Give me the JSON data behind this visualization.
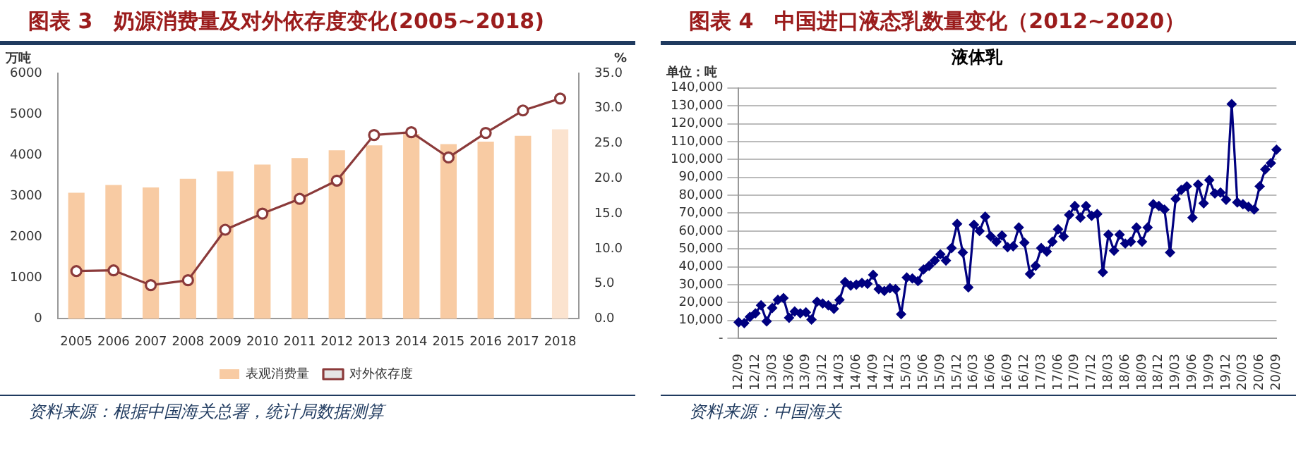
{
  "chart_data": [
    {
      "type": "bar",
      "title": "图表 3　奶源消费量及对外依存度变化(2005~2018)",
      "ylabel": "万吨",
      "y2label": "%",
      "categories": [
        "2005",
        "2006",
        "2007",
        "2008",
        "2009",
        "2010",
        "2011",
        "2012",
        "2013",
        "2014",
        "2015",
        "2016",
        "2017",
        "2018"
      ],
      "series": [
        {
          "name": "表观消费量",
          "type": "bar",
          "colors": [
            "#f8cba3",
            "#f8cba3",
            "#f8cba3",
            "#f8cba3",
            "#f8cba3",
            "#f8cba3",
            "#f8cba3",
            "#f8cba3",
            "#f8cba3",
            "#f8cba3",
            "#f8cba3",
            "#f8cba3",
            "#f8cba3",
            "#fbe3cf"
          ],
          "values": [
            3080,
            3270,
            3210,
            3420,
            3600,
            3770,
            3930,
            4120,
            4240,
            4520,
            4270,
            4330,
            4470,
            4630
          ]
        },
        {
          "name": "对外依存度",
          "type": "line",
          "axis": "y2",
          "color": "#8b3a3a",
          "marker": "circle",
          "values": [
            6.8,
            6.9,
            4.8,
            5.5,
            12.7,
            15.0,
            17.1,
            19.7,
            26.2,
            26.6,
            23.0,
            26.5,
            29.7,
            31.4
          ]
        }
      ],
      "ylim": [
        0,
        6000
      ],
      "yticks": [
        0,
        1000,
        2000,
        3000,
        4000,
        5000,
        6000
      ],
      "y2lim": [
        0,
        35
      ],
      "y2ticks": [
        {
          "value": 0,
          "label": "0.0"
        },
        {
          "value": 5,
          "label": "5.0"
        },
        {
          "value": 10,
          "label": "10.0"
        },
        {
          "value": 15,
          "label": "15.0"
        },
        {
          "value": 20,
          "label": "20.0"
        },
        {
          "value": 25,
          "label": "25.0"
        },
        {
          "value": 30,
          "label": "30.0"
        },
        {
          "value": 35,
          "label": "35.0"
        }
      ],
      "grid": false,
      "legend": "bottom",
      "annotations": [
        "资料来源：根据中国海关总署，统计局数据测算"
      ]
    },
    {
      "type": "line",
      "title": "图表 4　中国进口液态乳数量变化（2012~2020）",
      "subtitle": "液体乳",
      "ylabel": "单位：吨",
      "categories": [
        "12/09",
        null,
        null,
        "12/12",
        null,
        null,
        "13/03",
        null,
        null,
        "13/06",
        null,
        null,
        "13/09",
        null,
        null,
        "13/12",
        null,
        null,
        "14/03",
        null,
        null,
        "14/06",
        null,
        null,
        "14/09",
        null,
        null,
        "14/12",
        null,
        null,
        "15/03",
        null,
        null,
        "15/06",
        null,
        null,
        "15/09",
        null,
        null,
        "15/12",
        null,
        null,
        "16/03",
        null,
        null,
        "16/06",
        null,
        null,
        "16/09",
        null,
        null,
        "16/12",
        null,
        null,
        "17/03",
        null,
        null,
        "17/06",
        null,
        null,
        "17/09",
        null,
        null,
        "17/12",
        null,
        null,
        "18/03",
        null,
        null,
        "18/06",
        null,
        null,
        "18/09",
        null,
        null,
        "18/12",
        null,
        null,
        "19/03",
        null,
        null,
        "19/06",
        null,
        null,
        "19/09",
        null,
        null,
        "19/12",
        null,
        null,
        "20/03",
        null,
        null,
        "20/06",
        null,
        null,
        "20/09"
      ],
      "series": [
        {
          "color": "#000080",
          "marker": "diamond",
          "values": [
            9000,
            8500,
            12000,
            14000,
            18500,
            9500,
            17000,
            21500,
            22500,
            11500,
            15000,
            14000,
            14500,
            10500,
            20500,
            19500,
            18500,
            16500,
            21500,
            31500,
            29500,
            30000,
            31000,
            30500,
            35500,
            27500,
            26500,
            28000,
            27500,
            13500,
            34000,
            33500,
            32000,
            38500,
            40500,
            43500,
            47000,
            43500,
            50500,
            64000,
            48000,
            28500,
            63500,
            60000,
            68000,
            57000,
            54000,
            57500,
            51000,
            51500,
            62000,
            53500,
            36000,
            40500,
            50500,
            48500,
            54000,
            61000,
            57000,
            69000,
            74000,
            67500,
            74000,
            68500,
            69500,
            37000,
            58000,
            49000,
            58000,
            53000,
            54000,
            62000,
            54000,
            62000,
            75000,
            74000,
            72000,
            48000,
            78000,
            83000,
            85000,
            67500,
            86000,
            75500,
            88500,
            81000,
            81500,
            77500,
            131000,
            76000,
            75000,
            73500,
            72000,
            85000,
            94500,
            98000,
            105500
          ]
        }
      ],
      "ylim": [
        0,
        140000
      ],
      "yticks": [
        {
          "value": 0,
          "label": "-"
        },
        {
          "value": 10000,
          "label": "10,000"
        },
        {
          "value": 20000,
          "label": "20,000"
        },
        {
          "value": 30000,
          "label": "30,000"
        },
        {
          "value": 40000,
          "label": "40,000"
        },
        {
          "value": 50000,
          "label": "50,000"
        },
        {
          "value": 60000,
          "label": "60,000"
        },
        {
          "value": 70000,
          "label": "70,000"
        },
        {
          "value": 80000,
          "label": "80,000"
        },
        {
          "value": 90000,
          "label": "90,000"
        },
        {
          "value": 100000,
          "label": "100,000"
        },
        {
          "value": 110000,
          "label": "110,000"
        },
        {
          "value": 120000,
          "label": "120,000"
        },
        {
          "value": 130000,
          "label": "130,000"
        },
        {
          "value": 140000,
          "label": "140,000"
        }
      ],
      "grid": "y",
      "legend": false,
      "annotations": [
        "资料来源：中国海关"
      ]
    }
  ]
}
